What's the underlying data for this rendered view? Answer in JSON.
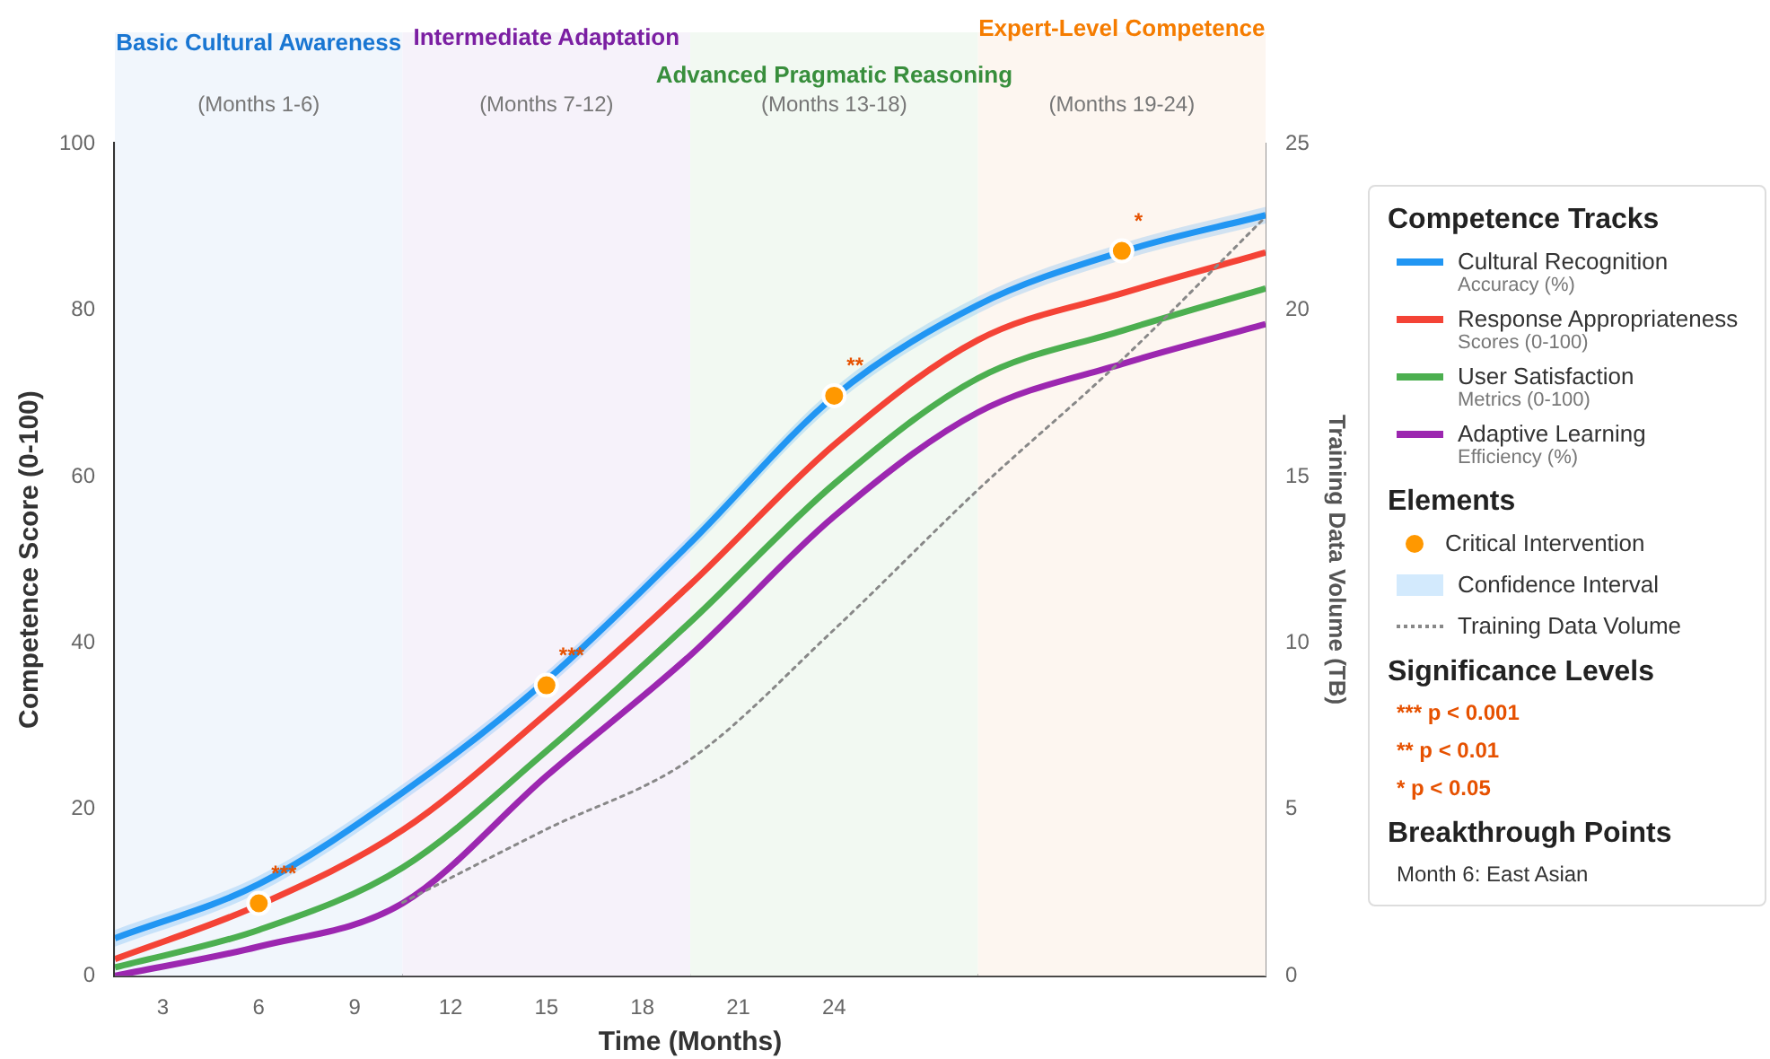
{
  "chart_data": {
    "type": "line",
    "xlabel": "Time (Months)",
    "ylabel": "Competence Score (0-100)",
    "y2label": "Training Data Volume (TB)",
    "legend_title": "Competence Tracks",
    "legend": "right",
    "grid": false,
    "xlim": [
      1.5,
      37.5
    ],
    "xticks": [
      3,
      6,
      9,
      12,
      15,
      18,
      21,
      24
    ],
    "ylim": [
      0,
      100
    ],
    "yticks": [
      0,
      20,
      40,
      60,
      80,
      100
    ],
    "y2lim": [
      0,
      25
    ],
    "y2ticks": [
      0,
      5,
      10,
      15,
      20,
      25
    ],
    "bands": [
      {
        "axis": "x",
        "from": 1.5,
        "to": 10.5,
        "label": "(Months 1-6)",
        "color": "#f1f6fc"
      },
      {
        "axis": "x",
        "from": 10.5,
        "to": 19.5,
        "label": "(Months 7-12)",
        "color": "#f6f2fa"
      },
      {
        "axis": "x",
        "from": 19.5,
        "to": 28.5,
        "label": "(Months 13-18)",
        "color": "#f2f9f2"
      },
      {
        "axis": "x",
        "from": 28.5,
        "to": 37.5,
        "label": "(Months 19-24)",
        "color": "#fdf6f0"
      }
    ],
    "series": [
      {
        "name": "Cultural Recognition",
        "color": "#2196f3",
        "x": [
          1.5,
          6,
          10.5,
          15,
          19.5,
          24,
          28.5,
          33,
          37.5
        ],
        "values": [
          4.5,
          11,
          22,
          35.5,
          52,
          69.6,
          80.6,
          87,
          91.4
        ],
        "lower": [
          3.5,
          10,
          21,
          34.5,
          51,
          68.6,
          79.6,
          86,
          90.4
        ],
        "upper": [
          5.5,
          12,
          23,
          36.5,
          53,
          70.6,
          81.6,
          88,
          92.4
        ]
      },
      {
        "name": "Response Appropriateness",
        "color": "#f44336",
        "x": [
          1.5,
          6,
          10.5,
          15,
          19.5,
          24,
          28.5,
          33,
          37.5
        ],
        "values": [
          2,
          8.5,
          17.5,
          31.5,
          47,
          63.8,
          76.4,
          82,
          86.9
        ]
      },
      {
        "name": "User Satisfaction",
        "color": "#4caf50",
        "x": [
          1.5,
          6,
          10.5,
          15,
          19.5,
          24,
          28.5,
          33,
          37.5
        ],
        "values": [
          1,
          5.5,
          13,
          27,
          42.5,
          59.1,
          71.8,
          77.5,
          82.6
        ]
      },
      {
        "name": "Adaptive Learning",
        "color": "#9c27b0",
        "x": [
          1.5,
          6,
          10.5,
          15,
          19.5,
          24,
          28.5,
          33,
          37.5
        ],
        "values": [
          0,
          3.5,
          8.7,
          24,
          38.5,
          55.2,
          67.7,
          73.5,
          78.3
        ]
      },
      {
        "name": "Training Data Volume",
        "color": "#888888",
        "axis": "y2",
        "line_style": "dotted",
        "x": [
          10.5,
          15,
          19.5,
          24,
          28.5,
          33,
          37.5
        ],
        "values": [
          2.2,
          4.4,
          6.5,
          10.4,
          14.6,
          18.5,
          22.8
        ]
      },
      {
        "name": "Critical Intervention",
        "type": "scatter",
        "marker": "circle",
        "color": "#ff9800",
        "x": [
          6,
          15,
          24,
          33
        ],
        "values": [
          8.7,
          34.9,
          69.7,
          87.1
        ]
      }
    ],
    "annotations": [
      "Basic Cultural Awareness",
      "Intermediate Adaptation",
      "Advanced Pragmatic Reasoning",
      "Expert-Level Competence",
      "Accuracy (%)",
      "Scores (0-100)",
      "Metrics (0-100)",
      "Efficiency (%)",
      "Elements",
      "Confidence Interval",
      "Significance Levels",
      "*** p < 0.001",
      "** p < 0.01",
      "* p < 0.05",
      "Breakthrough Points",
      "Month 6: East Asian",
      {
        "text": "***",
        "x": 6,
        "y": 8.7
      },
      {
        "text": "***",
        "x": 15,
        "y": 34.9
      },
      {
        "text": "**",
        "x": 24,
        "y": 69.7
      },
      {
        "text": "*",
        "x": 33,
        "y": 87.1
      }
    ]
  }
}
